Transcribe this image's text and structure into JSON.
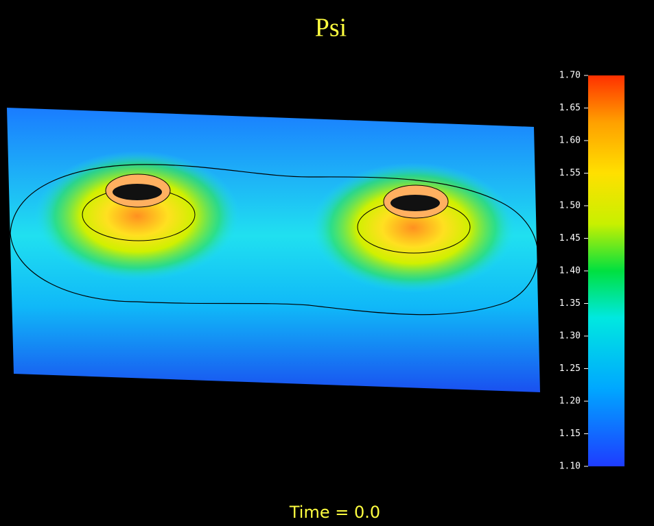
{
  "chart_data": {
    "type": "surface",
    "title": "Psi",
    "footer": "Time = 0.0",
    "colorbar": {
      "lim": [
        1.1,
        1.7
      ],
      "ticks": [
        {
          "value": 1.1,
          "label": "1.10"
        },
        1.15,
        {
          "value": 1.2,
          "label": "1.20"
        },
        1.25,
        {
          "value": 1.3,
          "label": "1.30"
        },
        1.35,
        {
          "value": 1.4,
          "label": "1.40"
        },
        1.45,
        {
          "value": 1.5,
          "label": "1.50"
        },
        1.55,
        {
          "value": 1.6,
          "label": "1.60"
        },
        1.65,
        {
          "value": 1.7,
          "label": "1.70"
        }
      ]
    }
  }
}
